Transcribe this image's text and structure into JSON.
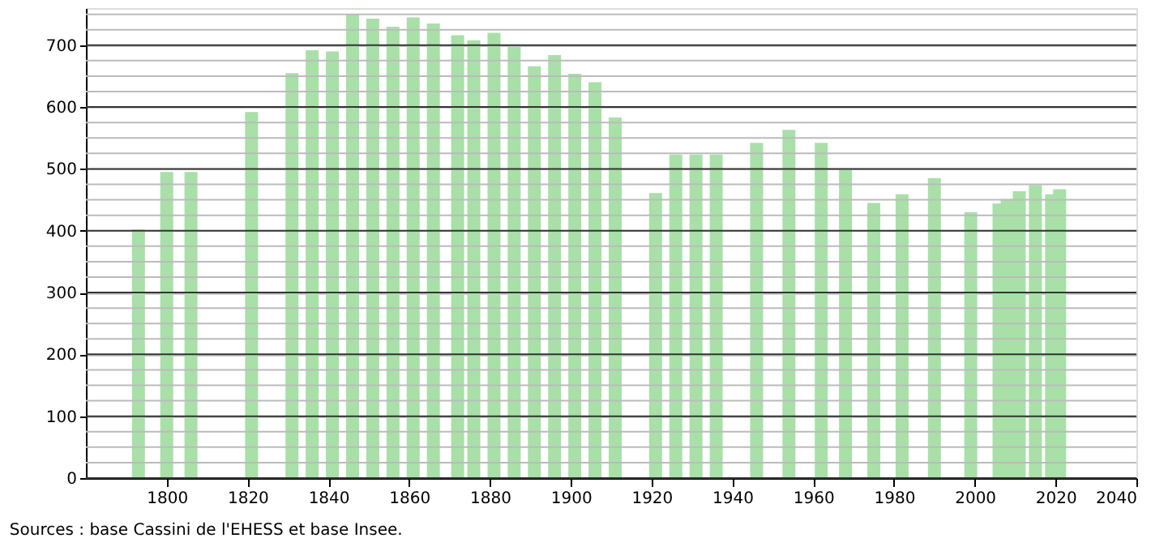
{
  "chart_data": {
    "type": "bar",
    "x": [
      1793,
      1800,
      1806,
      1821,
      1831,
      1836,
      1841,
      1846,
      1851,
      1856,
      1861,
      1866,
      1872,
      1876,
      1881,
      1886,
      1891,
      1896,
      1901,
      1906,
      1911,
      1921,
      1926,
      1931,
      1936,
      1946,
      1954,
      1962,
      1968,
      1975,
      1982,
      1990,
      1999,
      2006,
      2008,
      2011,
      2015,
      2019,
      2021
    ],
    "values": [
      402,
      495,
      495,
      592,
      655,
      692,
      690,
      750,
      743,
      730,
      745,
      735,
      716,
      708,
      720,
      697,
      666,
      684,
      654,
      640,
      583,
      461,
      523,
      523,
      523,
      542,
      563,
      542,
      500,
      445,
      459,
      485,
      430,
      444,
      451,
      464,
      474,
      459,
      467
    ],
    "color": "#a8e0a8",
    "xlim": [
      1780,
      2040
    ],
    "xticks": [
      1800,
      1820,
      1840,
      1860,
      1880,
      1900,
      1920,
      1940,
      1960,
      1980,
      2000,
      2020,
      2040
    ],
    "ylim": [
      0,
      760
    ],
    "yticks": [
      0,
      {
        "value": 25,
        "label": null
      },
      {
        "value": 50,
        "label": null
      },
      {
        "value": 75,
        "label": null
      },
      100,
      {
        "value": 125,
        "label": null
      },
      {
        "value": 150,
        "label": null
      },
      {
        "value": 175,
        "label": null
      },
      200,
      {
        "value": 225,
        "label": null
      },
      {
        "value": 250,
        "label": null
      },
      {
        "value": 275,
        "label": null
      },
      300,
      {
        "value": 325,
        "label": null
      },
      {
        "value": 350,
        "label": null
      },
      {
        "value": 375,
        "label": null
      },
      400,
      {
        "value": 425,
        "label": null
      },
      {
        "value": 450,
        "label": null
      },
      {
        "value": 475,
        "label": null
      },
      500,
      {
        "value": 525,
        "label": null
      },
      {
        "value": 550,
        "label": null
      },
      {
        "value": 575,
        "label": null
      },
      600,
      {
        "value": 625,
        "label": null
      },
      {
        "value": 650,
        "label": null
      },
      {
        "value": 675,
        "label": null
      },
      700,
      {
        "value": 725,
        "label": null
      },
      {
        "value": 750,
        "label": null
      }
    ],
    "grid": true,
    "annotations": [
      "Sources : base Cassini de l'EHESS et base Insee."
    ]
  }
}
